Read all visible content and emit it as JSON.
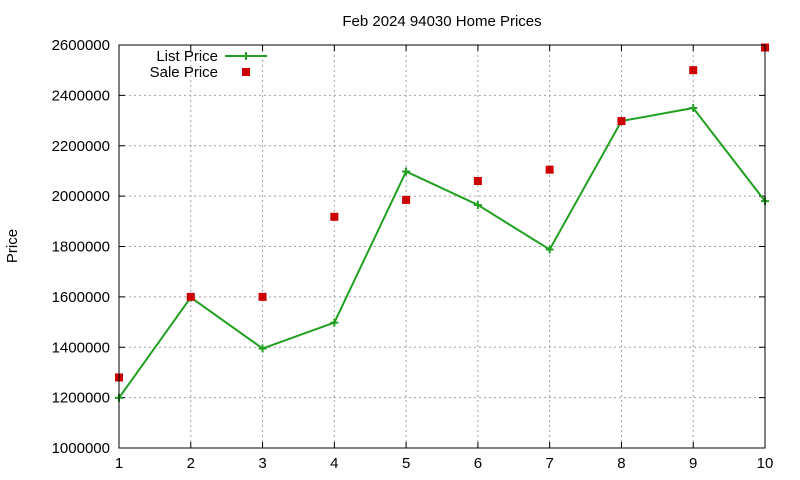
{
  "chart_data": {
    "type": "line",
    "title": "Feb 2024 94030 Home Prices",
    "xlabel": "",
    "ylabel": "Price",
    "x": [
      1,
      2,
      3,
      4,
      5,
      6,
      7,
      8,
      9,
      10
    ],
    "xlim": [
      1,
      10
    ],
    "ylim": [
      1000000,
      2600000
    ],
    "xticks": [
      "1",
      "2",
      "3",
      "4",
      "5",
      "6",
      "7",
      "8",
      "9",
      "10"
    ],
    "yticks": [
      "1000000",
      "1200000",
      "1400000",
      "1600000",
      "1800000",
      "2000000",
      "2200000",
      "2400000",
      "2600000"
    ],
    "grid": true,
    "legend_position": "top-left",
    "series": [
      {
        "name": "List Price",
        "style": "line+cross",
        "color": "#22a022",
        "values": [
          1199000,
          1598000,
          1395000,
          1498000,
          2098000,
          1965000,
          1788000,
          2298000,
          2350000,
          1980000
        ]
      },
      {
        "name": "Sale Price",
        "style": "square-points",
        "color": "#cc0000",
        "values": [
          1280000,
          1600000,
          1600000,
          1918000,
          1985000,
          2060000,
          2105000,
          2298000,
          2500000,
          2590000
        ]
      }
    ]
  }
}
